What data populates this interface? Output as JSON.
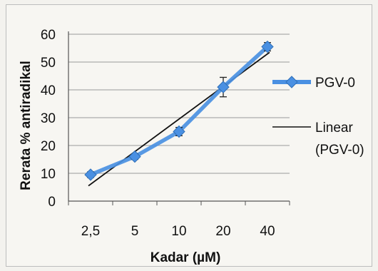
{
  "chart_data": {
    "type": "line",
    "title": "",
    "xlabel": "Kadar (µM)",
    "ylabel": "Rerata % antiradikal",
    "categories": [
      "2,5",
      "5",
      "10",
      "20",
      "40"
    ],
    "ylim": [
      0,
      60
    ],
    "yticks": [
      "0",
      "10",
      "20",
      "30",
      "40",
      "50",
      "60"
    ],
    "grid": "horizontal",
    "legend_position": "right",
    "series": [
      {
        "name": "PGV-0",
        "values": [
          9.5,
          16,
          25,
          41,
          55.5
        ],
        "error": [
          1.0,
          1.0,
          1.5,
          3.5,
          1.5
        ],
        "color": "#4a90e2",
        "marker": "diamond"
      }
    ],
    "trendline": {
      "name_line1": "Linear",
      "name_line2": "(PGV-0)",
      "start": 5.5,
      "end": 53.5,
      "color": "#111111"
    }
  }
}
